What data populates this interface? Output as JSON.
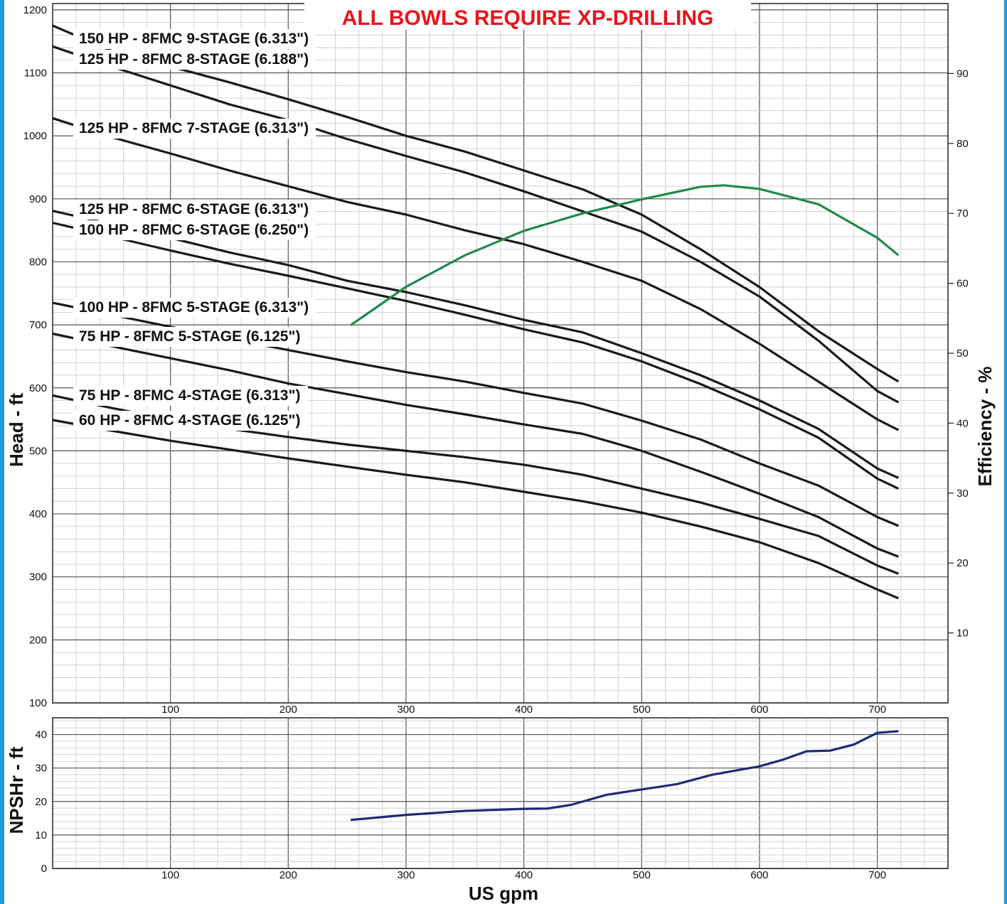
{
  "chart_data": [
    {
      "type": "line",
      "title": "",
      "banner": "ALL BOWLS REQUIRE XP-DRILLING",
      "xlabel": "",
      "ylabel": "Head - ft",
      "y2label": "Efficiency - %",
      "xlim": [
        0,
        760
      ],
      "ylim": [
        100,
        1210
      ],
      "y2lim": [
        0,
        100
      ],
      "x_ticks": [
        "100",
        "200",
        "300",
        "400",
        "500",
        "600",
        "700"
      ],
      "y_ticks": [
        "100",
        "200",
        "300",
        "400",
        "500",
        "600",
        "700",
        "800",
        "900",
        "1000",
        "1100",
        "1200"
      ],
      "y2_ticks": [
        "10",
        "20",
        "30",
        "40",
        "50",
        "60",
        "70",
        "80",
        "90"
      ],
      "grid": true,
      "head_series": [
        {
          "name": "150 HP - 8FMC 9-STAGE (6.313\")",
          "x": [
            0,
            50,
            100,
            150,
            200,
            250,
            300,
            350,
            400,
            450,
            500,
            550,
            600,
            650,
            700,
            718
          ],
          "values": [
            1175,
            1135,
            1110,
            1085,
            1058,
            1030,
            1000,
            975,
            945,
            915,
            875,
            820,
            760,
            690,
            630,
            610
          ]
        },
        {
          "name": "125 HP - 8FMC 8-STAGE (6.188\")",
          "x": [
            0,
            50,
            100,
            150,
            200,
            250,
            300,
            350,
            400,
            450,
            500,
            550,
            600,
            650,
            700,
            718
          ],
          "values": [
            1142,
            1110,
            1080,
            1050,
            1025,
            995,
            968,
            942,
            912,
            880,
            848,
            800,
            745,
            675,
            595,
            577
          ]
        },
        {
          "name": "125 HP - 8FMC 7-STAGE (6.313\")",
          "x": [
            0,
            50,
            100,
            150,
            200,
            250,
            300,
            350,
            400,
            450,
            500,
            550,
            600,
            650,
            700,
            718
          ],
          "values": [
            1028,
            998,
            972,
            945,
            920,
            895,
            875,
            850,
            828,
            800,
            770,
            725,
            670,
            610,
            550,
            533
          ]
        },
        {
          "name": "125 HP - 8FMC 6-STAGE (6.313\")",
          "x": [
            0,
            50,
            100,
            150,
            200,
            250,
            300,
            350,
            400,
            450,
            500,
            550,
            600,
            650,
            700,
            718
          ],
          "values": [
            881,
            860,
            838,
            815,
            795,
            770,
            752,
            731,
            708,
            688,
            655,
            620,
            580,
            535,
            472,
            457
          ]
        },
        {
          "name": "100 HP - 8FMC 6-STAGE (6.250\")",
          "x": [
            0,
            50,
            100,
            150,
            200,
            250,
            300,
            350,
            400,
            450,
            500,
            550,
            600,
            650,
            700,
            718
          ],
          "values": [
            862,
            840,
            818,
            797,
            778,
            758,
            738,
            716,
            693,
            672,
            642,
            606,
            566,
            521,
            456,
            440
          ]
        },
        {
          "name": "100 HP - 8FMC 5-STAGE (6.313\")",
          "x": [
            0,
            50,
            100,
            150,
            200,
            250,
            300,
            350,
            400,
            450,
            500,
            550,
            600,
            650,
            700,
            718
          ],
          "values": [
            735,
            716,
            697,
            678,
            660,
            642,
            625,
            610,
            592,
            575,
            548,
            518,
            480,
            445,
            395,
            381
          ]
        },
        {
          "name": "75 HP - 8FMC 5-STAGE (6.125\")",
          "x": [
            0,
            50,
            100,
            150,
            200,
            250,
            300,
            350,
            400,
            450,
            500,
            550,
            600,
            650,
            700,
            718
          ],
          "values": [
            686,
            666,
            647,
            628,
            607,
            590,
            573,
            558,
            542,
            527,
            500,
            467,
            432,
            395,
            345,
            332
          ]
        },
        {
          "name": "75 HP - 8FMC 4-STAGE (6.313\")",
          "x": [
            0,
            50,
            100,
            150,
            200,
            250,
            300,
            350,
            400,
            450,
            500,
            550,
            600,
            650,
            700,
            718
          ],
          "values": [
            588,
            568,
            550,
            535,
            522,
            510,
            500,
            490,
            478,
            462,
            440,
            418,
            392,
            365,
            318,
            305
          ]
        },
        {
          "name": "60 HP - 8FMC 4-STAGE (6.125\")",
          "x": [
            0,
            50,
            100,
            150,
            200,
            250,
            300,
            350,
            400,
            450,
            500,
            550,
            600,
            650,
            700,
            718
          ],
          "values": [
            549,
            532,
            516,
            502,
            488,
            475,
            462,
            450,
            435,
            420,
            402,
            380,
            355,
            322,
            280,
            266
          ]
        }
      ],
      "efficiency_series": {
        "name": "",
        "color": "#1f8a4a",
        "x": [
          253,
          300,
          350,
          400,
          450,
          500,
          550,
          570,
          600,
          650,
          700,
          718
        ],
        "values": [
          54,
          59.5,
          64,
          67.5,
          70,
          72,
          73.8,
          74,
          73.5,
          71.3,
          66.5,
          64
        ]
      },
      "colors": {
        "head": "#1a1a1a",
        "efficiency": "#1f8a4a"
      }
    },
    {
      "type": "line",
      "title": "",
      "xlabel": "US gpm",
      "ylabel": "NPSHr - ft",
      "xlim": [
        0,
        760
      ],
      "ylim": [
        0,
        45
      ],
      "x_ticks": [
        "100",
        "200",
        "300",
        "400",
        "500",
        "600",
        "700"
      ],
      "y_ticks": [
        "0",
        "10",
        "20",
        "30",
        "40"
      ],
      "grid": true,
      "series": [
        {
          "name": "",
          "color": "#1e2b78",
          "x": [
            253,
            300,
            350,
            400,
            420,
            440,
            470,
            500,
            530,
            560,
            600,
            620,
            640,
            660,
            680,
            700,
            718
          ],
          "values": [
            14.5,
            16,
            17.2,
            17.8,
            17.9,
            19,
            22,
            23.6,
            25.2,
            28,
            30.5,
            32.5,
            35,
            35.2,
            37,
            40.5,
            41
          ]
        }
      ]
    }
  ]
}
